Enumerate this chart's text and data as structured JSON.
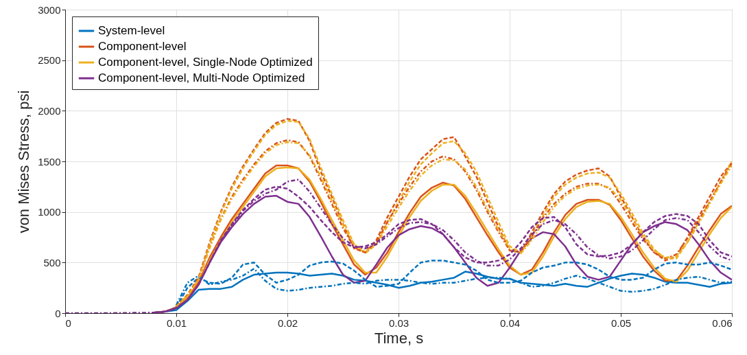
{
  "chart_data": {
    "type": "line",
    "xlabel": "Time, s",
    "ylabel": "von Mises Stress, psi",
    "x": [
      0,
      0.004,
      0.008,
      0.009,
      0.01,
      0.011,
      0.012,
      0.013,
      0.014,
      0.015,
      0.016,
      0.017,
      0.018,
      0.019,
      0.02,
      0.021,
      0.022,
      0.023,
      0.024,
      0.025,
      0.026,
      0.027,
      0.028,
      0.029,
      0.03,
      0.031,
      0.032,
      0.033,
      0.034,
      0.035,
      0.036,
      0.037,
      0.038,
      0.039,
      0.04,
      0.041,
      0.042,
      0.043,
      0.044,
      0.045,
      0.046,
      0.047,
      0.048,
      0.049,
      0.05,
      0.051,
      0.052,
      0.053,
      0.054,
      0.055,
      0.056,
      0.057,
      0.058,
      0.059,
      0.06
    ],
    "series": [
      {
        "name": "System-level",
        "color": "#0072bd",
        "line_style": "solid",
        "values": [
          null,
          null,
          5,
          15,
          30,
          120,
          230,
          240,
          240,
          260,
          330,
          380,
          390,
          400,
          400,
          390,
          370,
          380,
          390,
          370,
          330,
          320,
          300,
          280,
          250,
          270,
          300,
          310,
          330,
          350,
          410,
          390,
          360,
          340,
          340,
          300,
          290,
          280,
          270,
          290,
          270,
          260,
          300,
          340,
          370,
          390,
          380,
          350,
          310,
          300,
          300,
          280,
          260,
          290,
          300
        ]
      },
      {
        "name": "Component-level",
        "color": "#d95319",
        "line_style": "solid",
        "values": [
          null,
          null,
          5,
          15,
          60,
          150,
          300,
          550,
          750,
          930,
          1080,
          1230,
          1380,
          1460,
          1460,
          1430,
          1300,
          1100,
          880,
          680,
          480,
          380,
          450,
          600,
          800,
          990,
          1150,
          1240,
          1290,
          1260,
          1130,
          950,
          770,
          600,
          450,
          380,
          430,
          600,
          800,
          970,
          1080,
          1120,
          1120,
          1070,
          920,
          740,
          560,
          420,
          320,
          320,
          470,
          650,
          820,
          980,
          1060
        ]
      },
      {
        "name": "Component-level, Single-Node Optimized",
        "color": "#edb120",
        "line_style": "solid",
        "values": [
          null,
          null,
          5,
          15,
          55,
          140,
          280,
          520,
          720,
          900,
          1050,
          1200,
          1350,
          1430,
          1440,
          1430,
          1320,
          1130,
          920,
          720,
          520,
          400,
          400,
          560,
          760,
          950,
          1110,
          1210,
          1270,
          1270,
          1160,
          990,
          810,
          630,
          470,
          380,
          400,
          560,
          760,
          930,
          1050,
          1100,
          1110,
          1080,
          950,
          780,
          600,
          450,
          340,
          310,
          420,
          600,
          780,
          940,
          1050
        ]
      },
      {
        "name": "Component-level, Multi-Node Optimized",
        "color": "#7e2f8e",
        "line_style": "solid",
        "values": [
          null,
          null,
          5,
          15,
          50,
          130,
          280,
          500,
          700,
          850,
          980,
          1080,
          1150,
          1160,
          1100,
          1080,
          950,
          760,
          560,
          380,
          300,
          320,
          480,
          650,
          770,
          830,
          860,
          840,
          780,
          650,
          500,
          350,
          270,
          300,
          450,
          620,
          740,
          800,
          780,
          660,
          480,
          360,
          330,
          360,
          520,
          680,
          800,
          860,
          900,
          880,
          820,
          680,
          520,
          400,
          330
        ]
      },
      {
        "color": "#0072bd",
        "line_style": "dashed",
        "values": [
          null,
          null,
          null,
          null,
          60,
          250,
          350,
          300,
          290,
          350,
          480,
          500,
          380,
          300,
          330,
          380,
          470,
          500,
          510,
          490,
          420,
          330,
          260,
          270,
          290,
          400,
          500,
          520,
          520,
          500,
          480,
          420,
          330,
          300,
          300,
          320,
          400,
          450,
          470,
          500,
          500,
          480,
          430,
          360,
          330,
          330,
          350,
          430,
          490,
          500,
          480,
          480,
          500,
          470,
          430
        ]
      },
      {
        "color": "#0072bd",
        "line_style": "dashdot",
        "values": [
          null,
          null,
          null,
          null,
          80,
          300,
          370,
          280,
          310,
          330,
          370,
          440,
          320,
          240,
          220,
          230,
          250,
          260,
          270,
          290,
          300,
          290,
          320,
          330,
          330,
          320,
          300,
          290,
          300,
          300,
          320,
          340,
          350,
          350,
          340,
          300,
          260,
          270,
          300,
          340,
          370,
          340,
          300,
          260,
          220,
          210,
          220,
          240,
          280,
          330,
          350,
          360,
          330,
          300,
          310
        ]
      },
      {
        "color": "#d95319",
        "line_style": "dashed",
        "values": [
          null,
          null,
          null,
          null,
          70,
          180,
          350,
          700,
          1000,
          1250,
          1450,
          1620,
          1780,
          1880,
          1920,
          1900,
          1700,
          1400,
          1150,
          880,
          640,
          600,
          720,
          950,
          1150,
          1350,
          1520,
          1620,
          1720,
          1740,
          1550,
          1350,
          1100,
          850,
          620,
          600,
          800,
          1000,
          1180,
          1300,
          1370,
          1410,
          1430,
          1350,
          1150,
          950,
          750,
          600,
          520,
          560,
          750,
          950,
          1150,
          1350,
          1490
        ]
      },
      {
        "color": "#edb120",
        "line_style": "dashed",
        "values": [
          null,
          null,
          null,
          null,
          65,
          170,
          330,
          680,
          980,
          1230,
          1430,
          1600,
          1760,
          1860,
          1900,
          1890,
          1720,
          1440,
          1180,
          920,
          680,
          590,
          680,
          900,
          1100,
          1300,
          1470,
          1580,
          1680,
          1700,
          1580,
          1400,
          1150,
          900,
          660,
          600,
          760,
          960,
          1150,
          1270,
          1340,
          1380,
          1390,
          1340,
          1180,
          990,
          790,
          630,
          540,
          540,
          700,
          900,
          1100,
          1300,
          1500
        ]
      },
      {
        "color": "#d95319",
        "line_style": "dashdot",
        "values": [
          null,
          null,
          null,
          null,
          65,
          170,
          330,
          650,
          930,
          1150,
          1320,
          1470,
          1600,
          1680,
          1710,
          1690,
          1550,
          1320,
          1080,
          840,
          650,
          600,
          700,
          900,
          1080,
          1250,
          1400,
          1500,
          1550,
          1520,
          1400,
          1220,
          1000,
          800,
          620,
          600,
          760,
          940,
          1080,
          1180,
          1250,
          1280,
          1280,
          1230,
          1080,
          900,
          730,
          600,
          540,
          580,
          740,
          920,
          1100,
          1300,
          1480
        ]
      },
      {
        "color": "#edb120",
        "line_style": "dashdot",
        "values": [
          null,
          null,
          null,
          null,
          65,
          170,
          330,
          640,
          920,
          1130,
          1300,
          1450,
          1580,
          1660,
          1690,
          1680,
          1560,
          1350,
          1110,
          870,
          680,
          610,
          680,
          860,
          1040,
          1210,
          1360,
          1460,
          1520,
          1510,
          1420,
          1250,
          1030,
          820,
          640,
          590,
          720,
          900,
          1050,
          1160,
          1230,
          1260,
          1270,
          1240,
          1120,
          940,
          760,
          620,
          550,
          560,
          700,
          880,
          1080,
          1280,
          1460
        ]
      },
      {
        "color": "#7e2f8e",
        "line_style": "dashed",
        "values": [
          null,
          null,
          5,
          15,
          50,
          130,
          280,
          500,
          720,
          880,
          1020,
          1130,
          1220,
          1250,
          1230,
          1150,
          1050,
          920,
          800,
          700,
          650,
          660,
          700,
          780,
          880,
          920,
          930,
          880,
          780,
          650,
          550,
          500,
          500,
          520,
          580,
          700,
          850,
          940,
          950,
          850,
          680,
          580,
          560,
          570,
          600,
          680,
          800,
          900,
          960,
          980,
          960,
          880,
          720,
          600,
          560
        ]
      },
      {
        "color": "#7e2f8e",
        "line_style": "dashdot",
        "values": [
          0,
          0,
          5,
          15,
          50,
          130,
          280,
          500,
          710,
          870,
          1010,
          1110,
          1180,
          1220,
          1300,
          1320,
          1200,
          1040,
          880,
          740,
          660,
          640,
          680,
          760,
          840,
          890,
          900,
          880,
          820,
          720,
          600,
          520,
          470,
          470,
          530,
          640,
          780,
          880,
          920,
          880,
          780,
          650,
          570,
          540,
          560,
          620,
          720,
          830,
          920,
          940,
          920,
          800,
          660,
          560,
          520
        ]
      }
    ],
    "xlim": [
      0,
      0.06
    ],
    "xticks": [
      0,
      0.01,
      0.02,
      0.03,
      0.04,
      0.05,
      0.06
    ],
    "ylim": [
      0,
      3000
    ],
    "yticks": [
      0,
      500,
      1000,
      1500,
      2000,
      2500,
      3000
    ],
    "grid": true,
    "legend": "top left"
  }
}
